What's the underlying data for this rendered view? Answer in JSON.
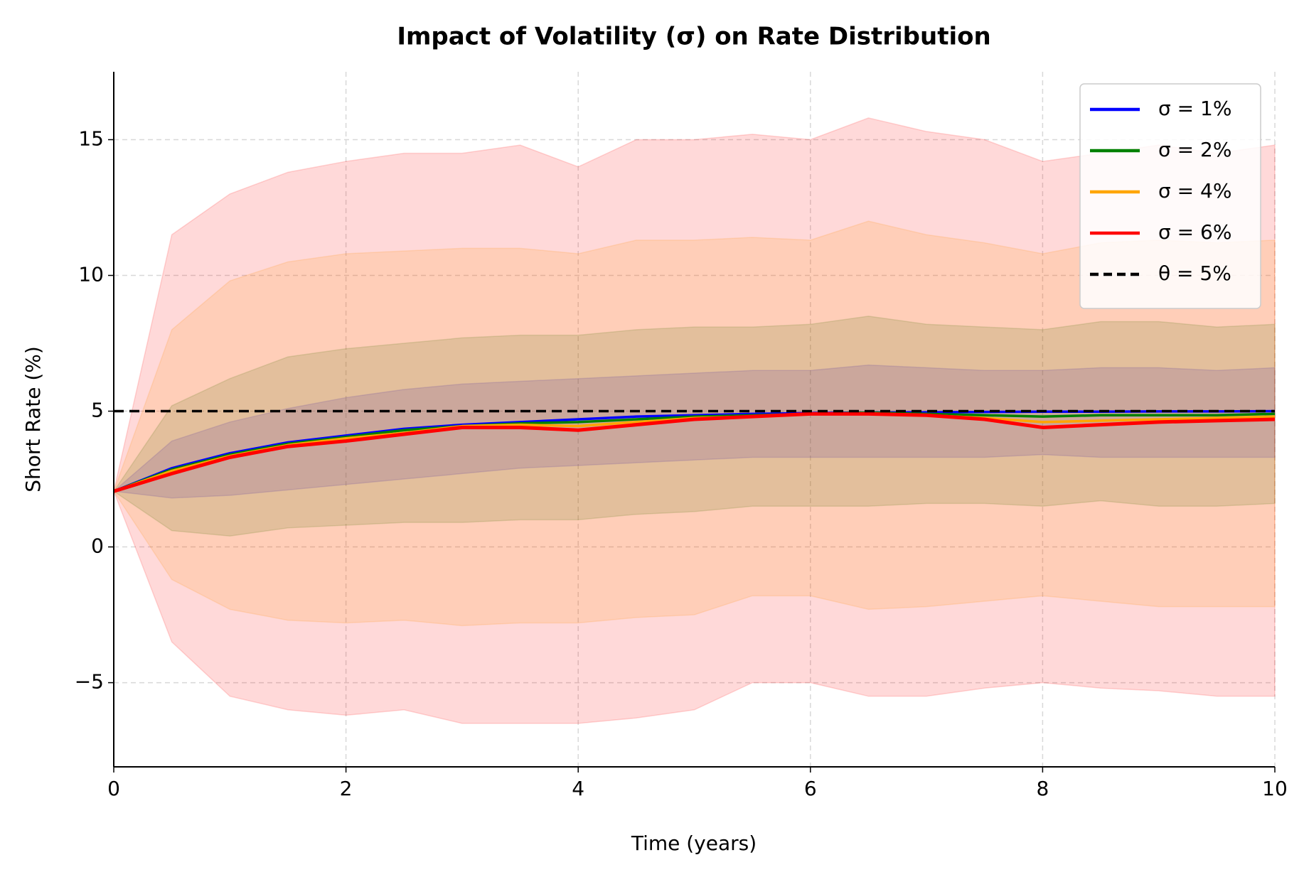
{
  "chart_data": {
    "type": "line_band",
    "title": "Impact of Volatility (σ) on Rate Distribution",
    "xlabel": "Time (years)",
    "ylabel": "Short Rate (%)",
    "x": [
      0,
      0.5,
      1,
      1.5,
      2,
      2.5,
      3,
      3.5,
      4,
      4.5,
      5,
      5.5,
      6,
      6.5,
      7,
      7.5,
      8,
      8.5,
      9,
      9.5,
      10
    ],
    "xlim": [
      0,
      10
    ],
    "xticks": [
      0,
      2,
      4,
      6,
      8,
      10
    ],
    "ylim": [
      -8.1,
      17.5
    ],
    "yticks": [
      {
        "value": -5,
        "label": "−5"
      },
      0,
      5,
      10,
      15
    ],
    "grid": true,
    "legend": "upper right",
    "series": [
      {
        "name": "σ = 1%",
        "color": "#0000ff",
        "values": [
          2.05,
          2.9,
          3.45,
          3.85,
          4.1,
          4.35,
          4.5,
          4.6,
          4.7,
          4.8,
          4.85,
          4.9,
          4.93,
          4.95,
          4.96,
          4.97,
          4.98,
          4.98,
          4.99,
          4.99,
          5.0
        ],
        "upper": [
          2.05,
          3.9,
          4.6,
          5.1,
          5.5,
          5.8,
          6.0,
          6.1,
          6.2,
          6.3,
          6.4,
          6.5,
          6.5,
          6.7,
          6.6,
          6.5,
          6.5,
          6.6,
          6.6,
          6.5,
          6.6
        ],
        "lower": [
          2.05,
          1.8,
          1.9,
          2.1,
          2.3,
          2.5,
          2.7,
          2.9,
          3.0,
          3.1,
          3.2,
          3.3,
          3.3,
          3.3,
          3.3,
          3.3,
          3.4,
          3.3,
          3.3,
          3.3,
          3.3
        ]
      },
      {
        "name": "σ = 2%",
        "color": "#008000",
        "values": [
          2.05,
          2.85,
          3.4,
          3.8,
          4.05,
          4.3,
          4.45,
          4.55,
          4.6,
          4.7,
          4.8,
          4.85,
          4.9,
          4.95,
          4.9,
          4.85,
          4.8,
          4.85,
          4.85,
          4.85,
          4.9
        ],
        "upper": [
          2.05,
          5.2,
          6.2,
          7.0,
          7.3,
          7.5,
          7.7,
          7.8,
          7.8,
          8.0,
          8.1,
          8.1,
          8.2,
          8.5,
          8.2,
          8.1,
          8.0,
          8.3,
          8.3,
          8.1,
          8.2
        ],
        "lower": [
          2.05,
          0.6,
          0.4,
          0.7,
          0.8,
          0.9,
          0.9,
          1.0,
          1.0,
          1.2,
          1.3,
          1.5,
          1.5,
          1.5,
          1.6,
          1.6,
          1.5,
          1.7,
          1.5,
          1.5,
          1.6
        ]
      },
      {
        "name": "σ = 4%",
        "color": "#ffa500",
        "values": [
          2.05,
          2.8,
          3.35,
          3.75,
          4.0,
          4.2,
          4.45,
          4.5,
          4.45,
          4.6,
          4.75,
          4.8,
          4.9,
          4.92,
          4.85,
          4.75,
          4.6,
          4.65,
          4.7,
          4.75,
          4.8
        ],
        "upper": [
          2.05,
          8.0,
          9.8,
          10.5,
          10.8,
          10.9,
          11.0,
          11.0,
          10.8,
          11.3,
          11.3,
          11.4,
          11.3,
          12.0,
          11.5,
          11.2,
          10.8,
          11.2,
          11.3,
          11.2,
          11.3
        ],
        "lower": [
          2.05,
          -1.2,
          -2.3,
          -2.7,
          -2.8,
          -2.7,
          -2.9,
          -2.8,
          -2.8,
          -2.6,
          -2.5,
          -1.8,
          -1.8,
          -2.3,
          -2.2,
          -2.0,
          -1.8,
          -2.0,
          -2.2,
          -2.2,
          -2.2
        ]
      },
      {
        "name": "σ = 6%",
        "color": "#ff0000",
        "values": [
          2.05,
          2.7,
          3.3,
          3.7,
          3.9,
          4.15,
          4.4,
          4.4,
          4.3,
          4.5,
          4.7,
          4.8,
          4.9,
          4.9,
          4.85,
          4.7,
          4.4,
          4.5,
          4.6,
          4.65,
          4.7
        ],
        "upper": [
          2.05,
          11.5,
          13.0,
          13.8,
          14.2,
          14.5,
          14.5,
          14.8,
          14.0,
          15.0,
          15.0,
          15.2,
          15.0,
          15.8,
          15.3,
          15.0,
          14.2,
          14.5,
          14.8,
          14.5,
          14.8
        ],
        "lower": [
          2.05,
          -3.5,
          -5.5,
          -6.0,
          -6.2,
          -6.0,
          -6.5,
          -6.5,
          -6.5,
          -6.3,
          -6.0,
          -5.0,
          -5.0,
          -5.5,
          -5.5,
          -5.2,
          -5.0,
          -5.2,
          -5.3,
          -5.5,
          -5.5
        ]
      }
    ],
    "reference_line": {
      "name": "θ = 5%",
      "value": 5,
      "color": "#000000"
    }
  }
}
